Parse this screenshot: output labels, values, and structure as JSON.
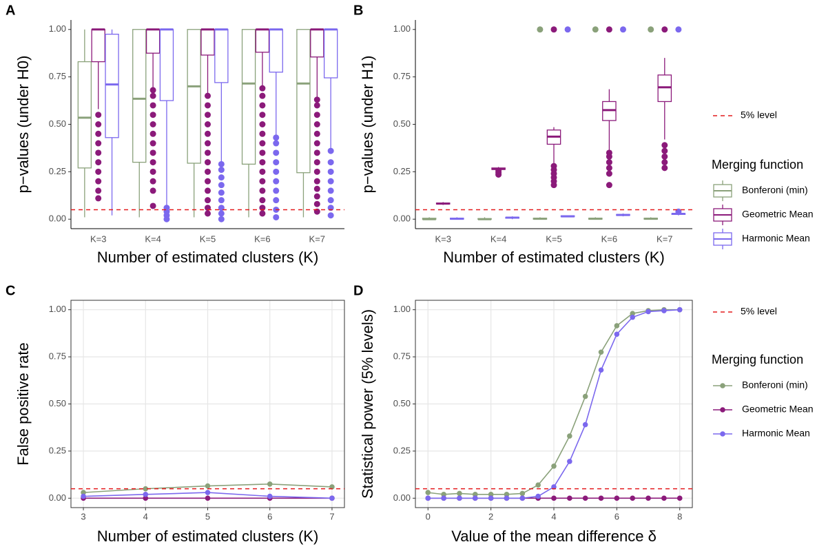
{
  "chart_data": [
    {
      "type": "box",
      "tag": "A",
      "ylabel": "p−values (under H0)",
      "xlabel": "Number of estimated clusters (K)",
      "categories": [
        "K=3",
        "K=4",
        "K=5",
        "K=6",
        "K=7"
      ],
      "ylim": [
        -0.05,
        1.05
      ],
      "yticks": [
        {
          "value": 0,
          "label": "0.00"
        },
        {
          "value": 0.25,
          "label": "0.25"
        },
        {
          "value": 0.5,
          "label": "0.50"
        },
        {
          "value": 0.75,
          "label": "0.75"
        },
        {
          "value": 1,
          "label": "1.00"
        }
      ],
      "grid": false,
      "frame": false,
      "hline": {
        "value": 0.05,
        "color": "#e41a1c"
      },
      "series": [
        {
          "color": "#8aa17a",
          "boxes": [
            {
              "min": 0.01,
              "q1": 0.27,
              "median": 0.535,
              "q3": 0.83,
              "max": 1.0,
              "outliers": []
            },
            {
              "min": 0.01,
              "q1": 0.3,
              "median": 0.635,
              "q3": 1.0,
              "max": 1.0,
              "outliers": []
            },
            {
              "min": 0.01,
              "q1": 0.295,
              "median": 0.7,
              "q3": 1.0,
              "max": 1.0,
              "outliers": []
            },
            {
              "min": 0.01,
              "q1": 0.29,
              "median": 0.715,
              "q3": 1.0,
              "max": 1.0,
              "outliers": []
            },
            {
              "min": 0.01,
              "q1": 0.245,
              "median": 0.715,
              "q3": 1.0,
              "max": 1.0,
              "outliers": []
            }
          ]
        },
        {
          "color": "#8b1a7a",
          "boxes": [
            {
              "min": 0.58,
              "q1": 0.83,
              "median": 1.0,
              "q3": 1.0,
              "max": 1.0,
              "outliers": [
                0.11,
                0.15,
                0.2,
                0.25,
                0.3,
                0.35,
                0.4,
                0.45,
                0.5,
                0.55
              ]
            },
            {
              "min": 0.69,
              "q1": 0.875,
              "median": 1.0,
              "q3": 1.0,
              "max": 1.0,
              "outliers": [
                0.07,
                0.15,
                0.2,
                0.25,
                0.3,
                0.35,
                0.4,
                0.45,
                0.5,
                0.55,
                0.6,
                0.65,
                0.68
              ]
            },
            {
              "min": 0.66,
              "q1": 0.865,
              "median": 1.0,
              "q3": 1.0,
              "max": 1.0,
              "outliers": [
                0.03,
                0.06,
                0.1,
                0.15,
                0.2,
                0.25,
                0.3,
                0.35,
                0.4,
                0.45,
                0.5,
                0.55,
                0.6,
                0.65
              ]
            },
            {
              "min": 0.7,
              "q1": 0.88,
              "median": 1.0,
              "q3": 1.0,
              "max": 1.0,
              "outliers": [
                0.03,
                0.06,
                0.1,
                0.15,
                0.2,
                0.25,
                0.3,
                0.35,
                0.4,
                0.45,
                0.5,
                0.55,
                0.6,
                0.65,
                0.69
              ]
            },
            {
              "min": 0.63,
              "q1": 0.855,
              "median": 1.0,
              "q3": 1.0,
              "max": 1.0,
              "outliers": [
                0.04,
                0.08,
                0.12,
                0.16,
                0.2,
                0.25,
                0.3,
                0.35,
                0.4,
                0.45,
                0.5,
                0.55,
                0.6,
                0.63
              ]
            }
          ]
        },
        {
          "color": "#7b68ee",
          "boxes": [
            {
              "min": 0.02,
              "q1": 0.43,
              "median": 0.71,
              "q3": 0.975,
              "max": 1.0,
              "outliers": []
            },
            {
              "min": 0.07,
              "q1": 0.625,
              "median": 1.0,
              "q3": 1.0,
              "max": 1.0,
              "outliers": [
                0.0,
                0.02,
                0.04,
                0.06
              ]
            },
            {
              "min": 0.3,
              "q1": 0.72,
              "median": 1.0,
              "q3": 1.0,
              "max": 1.0,
              "outliers": [
                0.0,
                0.03,
                0.06,
                0.1,
                0.14,
                0.18,
                0.22,
                0.26,
                0.29
              ]
            },
            {
              "min": 0.44,
              "q1": 0.775,
              "median": 1.0,
              "q3": 1.0,
              "max": 1.0,
              "outliers": [
                0.01,
                0.05,
                0.1,
                0.15,
                0.2,
                0.25,
                0.3,
                0.35,
                0.4,
                0.43
              ]
            },
            {
              "min": 0.37,
              "q1": 0.745,
              "median": 1.0,
              "q3": 1.0,
              "max": 1.0,
              "outliers": [
                0.02,
                0.06,
                0.1,
                0.15,
                0.2,
                0.25,
                0.3,
                0.36
              ]
            }
          ]
        }
      ]
    },
    {
      "type": "box",
      "tag": "B",
      "ylabel": "p−values (under H1)",
      "xlabel": "Number of estimated clusters (K)",
      "categories": [
        "K=3",
        "K=4",
        "K=5",
        "K=6",
        "K=7"
      ],
      "ylim": [
        -0.05,
        1.05
      ],
      "yticks": [
        {
          "value": 0,
          "label": "0.00"
        },
        {
          "value": 0.25,
          "label": "0.25"
        },
        {
          "value": 0.5,
          "label": "0.50"
        },
        {
          "value": 0.75,
          "label": "0.75"
        },
        {
          "value": 1,
          "label": "1.00"
        }
      ],
      "grid": false,
      "frame": false,
      "hline": {
        "value": 0.05,
        "color": "#e41a1c",
        "label": "5% level"
      },
      "legend_title": "Merging function",
      "series": [
        {
          "name": "Bonferoni (min)",
          "color": "#8aa17a",
          "boxes": [
            {
              "min": 0,
              "q1": 0,
              "median": 0,
              "q3": 0.005,
              "max": 0.01,
              "outliers": []
            },
            {
              "min": 0,
              "q1": 0,
              "median": 0,
              "q3": 0.003,
              "max": 0.01,
              "outliers": []
            },
            {
              "min": 0,
              "q1": 0,
              "median": 0.002,
              "q3": 0.005,
              "max": 0.01,
              "outliers": [
                1.0
              ]
            },
            {
              "min": 0,
              "q1": 0,
              "median": 0.002,
              "q3": 0.005,
              "max": 0.01,
              "outliers": [
                1.0
              ]
            },
            {
              "min": 0,
              "q1": 0,
              "median": 0.002,
              "q3": 0.005,
              "max": 0.01,
              "outliers": [
                1.0
              ]
            }
          ]
        },
        {
          "name": "Geometric Mean",
          "color": "#8b1a7a",
          "boxes": [
            {
              "min": 0.075,
              "q1": 0.08,
              "median": 0.082,
              "q3": 0.085,
              "max": 0.09,
              "outliers": []
            },
            {
              "min": 0.26,
              "q1": 0.262,
              "median": 0.265,
              "q3": 0.27,
              "max": 0.275,
              "outliers": [
                0.235,
                0.245,
                0.255
              ]
            },
            {
              "min": 0.29,
              "q1": 0.395,
              "median": 0.435,
              "q3": 0.47,
              "max": 0.485,
              "outliers": [
                0.18,
                0.2,
                0.22,
                0.24,
                0.26,
                0.28,
                1.0
              ]
            },
            {
              "min": 0.36,
              "q1": 0.52,
              "median": 0.575,
              "q3": 0.62,
              "max": 0.685,
              "outliers": [
                0.18,
                0.24,
                0.27,
                0.3,
                0.33,
                0.35,
                1.0
              ]
            },
            {
              "min": 0.42,
              "q1": 0.62,
              "median": 0.695,
              "q3": 0.76,
              "max": 0.85,
              "outliers": [
                0.27,
                0.3,
                0.33,
                0.36,
                0.39,
                1.0
              ]
            }
          ]
        },
        {
          "name": "Harmonic Mean",
          "color": "#7b68ee",
          "boxes": [
            {
              "min": 0,
              "q1": 0,
              "median": 0.002,
              "q3": 0.005,
              "max": 0.01,
              "outliers": []
            },
            {
              "min": 0,
              "q1": 0.005,
              "median": 0.008,
              "q3": 0.01,
              "max": 0.015,
              "outliers": []
            },
            {
              "min": 0.01,
              "q1": 0.013,
              "median": 0.015,
              "q3": 0.018,
              "max": 0.02,
              "outliers": [
                1.0
              ]
            },
            {
              "min": 0.015,
              "q1": 0.02,
              "median": 0.022,
              "q3": 0.025,
              "max": 0.03,
              "outliers": [
                1.0
              ]
            },
            {
              "min": 0.02,
              "q1": 0.025,
              "median": 0.028,
              "q3": 0.03,
              "max": 0.035,
              "outliers": [
                0.04,
                1.0
              ]
            }
          ]
        }
      ]
    },
    {
      "type": "line",
      "tag": "C",
      "ylabel": "False positive rate",
      "xlabel": "Number of estimated clusters (K)",
      "x": [
        3,
        4,
        5,
        6,
        7
      ],
      "xlim": [
        2.8,
        7.2
      ],
      "xticks": [
        3,
        4,
        5,
        6,
        7
      ],
      "ylim": [
        -0.05,
        1.05
      ],
      "yticks": [
        {
          "value": 0,
          "label": "0.00"
        },
        {
          "value": 0.25,
          "label": "0.25"
        },
        {
          "value": 0.5,
          "label": "0.50"
        },
        {
          "value": 0.75,
          "label": "0.75"
        },
        {
          "value": 1,
          "label": "1.00"
        }
      ],
      "grid": true,
      "frame": true,
      "hline": {
        "value": 0.05,
        "color": "#e41a1c"
      },
      "series": [
        {
          "color": "#8aa17a",
          "values": [
            0.03,
            0.05,
            0.065,
            0.075,
            0.06
          ]
        },
        {
          "color": "#8b1a7a",
          "values": [
            0,
            0,
            0,
            0,
            0
          ]
        },
        {
          "color": "#7b68ee",
          "values": [
            0.01,
            0.02,
            0.03,
            0.01,
            0.0
          ]
        }
      ]
    },
    {
      "type": "line",
      "tag": "D",
      "ylabel": "Statistical power (5% levels)",
      "xlabel": "Value of the mean difference δ",
      "x": [
        0,
        0.5,
        1,
        1.5,
        2,
        2.5,
        3,
        3.5,
        4,
        4.5,
        5,
        5.5,
        6,
        6.5,
        7,
        7.5,
        8
      ],
      "xlim": [
        -0.4,
        8.4
      ],
      "xticks": [
        0,
        2,
        4,
        6,
        8
      ],
      "ylim": [
        -0.05,
        1.05
      ],
      "yticks": [
        {
          "value": 0,
          "label": "0.00"
        },
        {
          "value": 0.25,
          "label": "0.25"
        },
        {
          "value": 0.5,
          "label": "0.50"
        },
        {
          "value": 0.75,
          "label": "0.75"
        },
        {
          "value": 1,
          "label": "1.00"
        }
      ],
      "grid": true,
      "frame": true,
      "hline": {
        "value": 0.05,
        "color": "#e41a1c",
        "label": "5% level"
      },
      "legend_title": "Merging function",
      "series": [
        {
          "name": "Bonferoni (min)",
          "color": "#8aa17a",
          "values": [
            0.03,
            0.02,
            0.025,
            0.02,
            0.02,
            0.02,
            0.025,
            0.07,
            0.17,
            0.33,
            0.54,
            0.775,
            0.915,
            0.98,
            0.995,
            1.0,
            1.0
          ]
        },
        {
          "name": "Geometric Mean",
          "color": "#8b1a7a",
          "values": [
            0,
            0,
            0,
            0,
            0,
            0,
            0,
            0,
            0,
            0,
            0,
            0,
            0,
            0,
            0,
            0,
            0
          ]
        },
        {
          "name": "Harmonic Mean",
          "color": "#7b68ee",
          "values": [
            0.0,
            0,
            0,
            0,
            0,
            0,
            0,
            0.01,
            0.06,
            0.195,
            0.39,
            0.68,
            0.87,
            0.96,
            0.99,
            0.995,
            1.0
          ]
        }
      ]
    }
  ]
}
